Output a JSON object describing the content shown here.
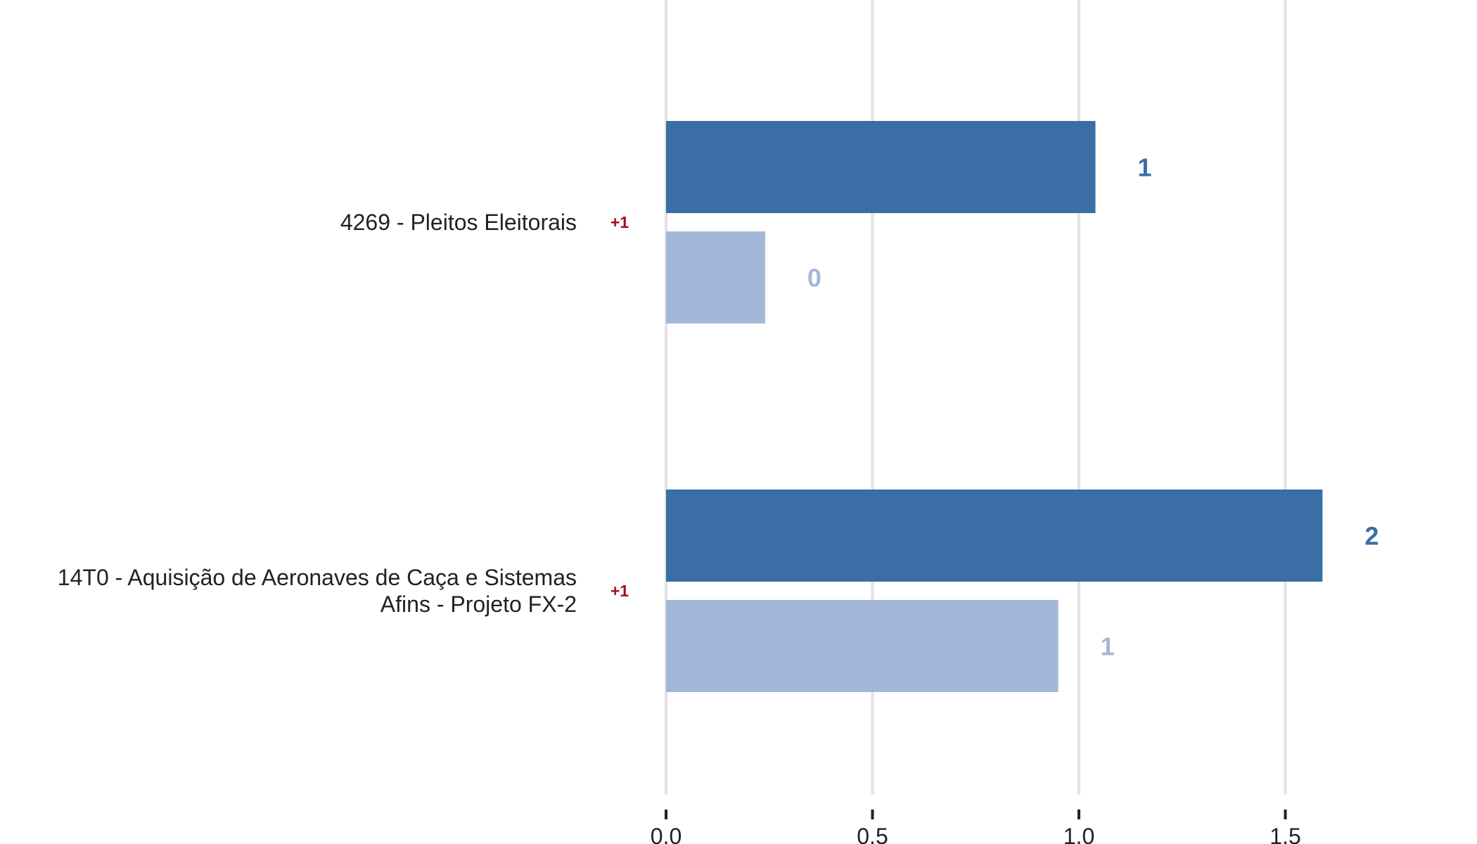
{
  "colors": {
    "primary": "#3a6ea5",
    "secondary": "#a3b8d8",
    "delta": "#a50f15",
    "grid": "#e2e2e2",
    "axis": "#222222"
  },
  "chart_data": {
    "type": "bar",
    "orientation": "horizontal",
    "categories": [
      "4269 - Pleitos Eleitorais",
      "14T0 - Aquisição de Aeronaves de Caça e Sistemas Afins - Projeto FX-2"
    ],
    "category_lines": [
      [
        "4269 - Pleitos Eleitorais"
      ],
      [
        "14T0 - Aquisição de Aeronaves de Caça e Sistemas",
        "Afins - Projeto FX-2"
      ]
    ],
    "deltas": [
      "+1",
      "+1"
    ],
    "series": [
      {
        "values": [
          1.04,
          1.59
        ],
        "labels": [
          "1",
          "2"
        ],
        "color": "#3a6ea5"
      },
      {
        "values": [
          0.24,
          0.95
        ],
        "labels": [
          "0",
          "1"
        ],
        "color": "#a3b8d8"
      }
    ],
    "xlim": [
      0,
      1.9
    ],
    "xticks": [
      0,
      0.5,
      1.0,
      1.5
    ],
    "xtick_labels": [
      "0,0",
      "0,5",
      "1,0",
      "1,5"
    ],
    "grid": true,
    "legend": "none",
    "title": "",
    "xlabel": "",
    "ylabel": ""
  }
}
